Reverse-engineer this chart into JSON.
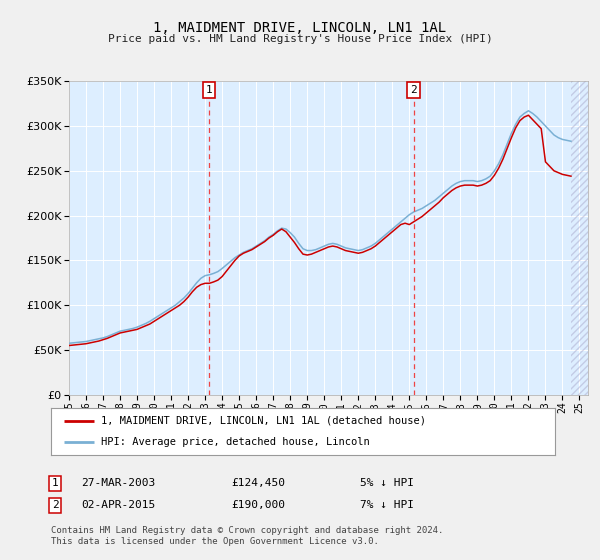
{
  "title": "1, MAIDMENT DRIVE, LINCOLN, LN1 1AL",
  "subtitle": "Price paid vs. HM Land Registry's House Price Index (HPI)",
  "ylim": [
    0,
    350000
  ],
  "xlim_start": 1995.0,
  "xlim_end": 2025.5,
  "yticks": [
    0,
    50000,
    100000,
    150000,
    200000,
    250000,
    300000,
    350000
  ],
  "ytick_labels": [
    "£0",
    "£50K",
    "£100K",
    "£150K",
    "£200K",
    "£250K",
    "£300K",
    "£350K"
  ],
  "background_color": "#f0f0f0",
  "plot_bg_color": "#ddeeff",
  "grid_color": "#ffffff",
  "red_line_color": "#cc0000",
  "blue_line_color": "#7ab0d4",
  "vline_color": "#ee4444",
  "vline_x1": 2003.23,
  "vline_x2": 2015.25,
  "sale1_label": "1",
  "sale2_label": "2",
  "sale1_date": "27-MAR-2003",
  "sale1_price": "£124,450",
  "sale1_hpi": "5% ↓ HPI",
  "sale2_date": "02-APR-2015",
  "sale2_price": "£190,000",
  "sale2_hpi": "7% ↓ HPI",
  "legend_line1": "1, MAIDMENT DRIVE, LINCOLN, LN1 1AL (detached house)",
  "legend_line2": "HPI: Average price, detached house, Lincoln",
  "footnote": "Contains HM Land Registry data © Crown copyright and database right 2024.\nThis data is licensed under the Open Government Licence v3.0.",
  "hpi_years": [
    1995.0,
    1995.25,
    1995.5,
    1995.75,
    1996.0,
    1996.25,
    1996.5,
    1996.75,
    1997.0,
    1997.25,
    1997.5,
    1997.75,
    1998.0,
    1998.25,
    1998.5,
    1998.75,
    1999.0,
    1999.25,
    1999.5,
    1999.75,
    2000.0,
    2000.25,
    2000.5,
    2000.75,
    2001.0,
    2001.25,
    2001.5,
    2001.75,
    2002.0,
    2002.25,
    2002.5,
    2002.75,
    2003.0,
    2003.25,
    2003.5,
    2003.75,
    2004.0,
    2004.25,
    2004.5,
    2004.75,
    2005.0,
    2005.25,
    2005.5,
    2005.75,
    2006.0,
    2006.25,
    2006.5,
    2006.75,
    2007.0,
    2007.25,
    2007.5,
    2007.75,
    2008.0,
    2008.25,
    2008.5,
    2008.75,
    2009.0,
    2009.25,
    2009.5,
    2009.75,
    2010.0,
    2010.25,
    2010.5,
    2010.75,
    2011.0,
    2011.25,
    2011.5,
    2011.75,
    2012.0,
    2012.25,
    2012.5,
    2012.75,
    2013.0,
    2013.25,
    2013.5,
    2013.75,
    2014.0,
    2014.25,
    2014.5,
    2014.75,
    2015.0,
    2015.25,
    2015.5,
    2015.75,
    2016.0,
    2016.25,
    2016.5,
    2016.75,
    2017.0,
    2017.25,
    2017.5,
    2017.75,
    2018.0,
    2018.25,
    2018.5,
    2018.75,
    2019.0,
    2019.25,
    2019.5,
    2019.75,
    2020.0,
    2020.25,
    2020.5,
    2020.75,
    2021.0,
    2021.25,
    2021.5,
    2021.75,
    2022.0,
    2022.25,
    2022.5,
    2022.75,
    2023.0,
    2023.25,
    2023.5,
    2023.75,
    2024.0,
    2024.25,
    2024.5
  ],
  "hpi_values": [
    57500,
    58000,
    58500,
    59000,
    59500,
    60500,
    61500,
    62500,
    63500,
    65000,
    67000,
    69000,
    71000,
    72000,
    73000,
    74000,
    75500,
    77500,
    79500,
    82000,
    85000,
    88000,
    91000,
    94000,
    97000,
    100000,
    104000,
    108000,
    113000,
    119000,
    125000,
    130000,
    133000,
    134000,
    135500,
    137500,
    141000,
    145000,
    149000,
    153000,
    156000,
    159000,
    161000,
    163000,
    166000,
    169000,
    172000,
    176000,
    179000,
    183000,
    186000,
    185000,
    181000,
    176000,
    169000,
    163000,
    161000,
    161000,
    162000,
    164000,
    166000,
    168000,
    169000,
    168000,
    166000,
    164000,
    163000,
    162000,
    161000,
    162000,
    164000,
    166000,
    169000,
    173000,
    177000,
    181000,
    185000,
    189000,
    193000,
    197000,
    201000,
    204000,
    206000,
    208000,
    211000,
    214000,
    217000,
    221000,
    225000,
    229000,
    233000,
    236000,
    238000,
    239000,
    239000,
    239000,
    238000,
    239000,
    241000,
    244000,
    250000,
    258000,
    268000,
    280000,
    292000,
    302000,
    310000,
    314000,
    317000,
    314000,
    310000,
    305000,
    300000,
    295000,
    290000,
    287000,
    285000,
    284000,
    283000
  ],
  "red_values": [
    55000,
    55500,
    56000,
    56500,
    57000,
    58000,
    59000,
    60000,
    61500,
    63000,
    65000,
    67000,
    69000,
    70000,
    71000,
    72000,
    73000,
    75000,
    77000,
    79000,
    82000,
    85000,
    88000,
    91000,
    94000,
    97000,
    100000,
    104000,
    109000,
    115000,
    120000,
    123000,
    124450,
    124450,
    126000,
    128000,
    132000,
    138000,
    144000,
    150000,
    155000,
    158000,
    160000,
    162000,
    165000,
    168000,
    171000,
    175000,
    178000,
    182000,
    185000,
    182000,
    176000,
    170000,
    163000,
    157000,
    156000,
    157000,
    159000,
    161000,
    163000,
    165000,
    166000,
    165000,
    163000,
    161000,
    160000,
    159000,
    158000,
    159000,
    161000,
    163000,
    166000,
    170000,
    174000,
    178000,
    182000,
    186000,
    190000,
    191500,
    190000,
    193000,
    196000,
    199000,
    203000,
    207000,
    211000,
    215000,
    220000,
    224000,
    228000,
    231000,
    233000,
    234000,
    234000,
    234000,
    233000,
    234000,
    236000,
    239000,
    245000,
    253000,
    263000,
    275000,
    287000,
    298000,
    306000,
    310000,
    312000,
    307000,
    302000,
    297000,
    260000,
    255000,
    250000,
    248000,
    246000,
    245000,
    244000
  ]
}
